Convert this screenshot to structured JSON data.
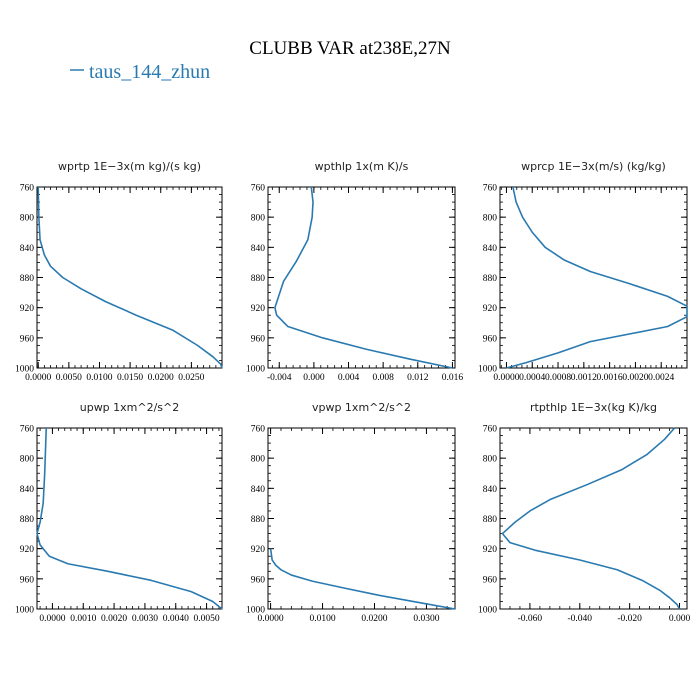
{
  "title": "CLUBB VAR at238E,27N",
  "legend": {
    "label": "taus_144_zhun",
    "color": "#2a7ab0"
  },
  "chart_data": [
    {
      "type": "line",
      "title": "wprtp   1E−3x(m kg)/(s kg)",
      "xlim": [
        -0.0002,
        0.03
      ],
      "ylim": [
        760,
        1000
      ],
      "xticks": [
        0.0,
        0.005,
        0.01,
        0.015,
        0.02,
        0.025
      ],
      "xticklabels": [
        "0.0000",
        "0.0050",
        "0.0100",
        "0.0150",
        "0.0200",
        "0.0250"
      ],
      "yticks": [
        760,
        800,
        840,
        880,
        920,
        960,
        1000
      ],
      "yticklabels": [
        "760",
        "800",
        "840",
        "880",
        "920",
        "960",
        "1000"
      ],
      "series": [
        {
          "x": [
            0.0,
            0.0001,
            0.0003,
            0.001,
            0.002,
            0.004,
            0.007,
            0.011,
            0.016,
            0.022,
            0.026,
            0.0285,
            0.0298,
            0.03
          ],
          "y": [
            760,
            800,
            830,
            850,
            865,
            880,
            895,
            912,
            930,
            950,
            970,
            985,
            995,
            1000
          ]
        }
      ]
    },
    {
      "type": "line",
      "title": "wpthlp   1x(m K)/s",
      "xlim": [
        -0.0053,
        0.0163
      ],
      "ylim": [
        760,
        1000
      ],
      "xticks": [
        -0.004,
        0.0,
        0.004,
        0.008,
        0.012,
        0.016
      ],
      "xticklabels": [
        "-0.004",
        "0.000",
        "0.004",
        "0.008",
        "0.012",
        "0.016"
      ],
      "yticks": [
        760,
        800,
        840,
        880,
        920,
        960,
        1000
      ],
      "yticklabels": [
        "760",
        "800",
        "840",
        "880",
        "920",
        "960",
        "1000"
      ],
      "series": [
        {
          "x": [
            -0.0003,
            -0.0001,
            -0.0002,
            -0.0007,
            -0.002,
            -0.0035,
            -0.0045,
            -0.0043,
            -0.003,
            0.001,
            0.006,
            0.011,
            0.016
          ],
          "y": [
            760,
            780,
            800,
            830,
            858,
            885,
            920,
            930,
            945,
            960,
            975,
            988,
            1000
          ]
        }
      ]
    },
    {
      "type": "line",
      "title": "wprcp   1E−3x(m/s) (kg/kg)",
      "xlim": [
        -0.0001,
        0.0028
      ],
      "ylim": [
        760,
        1000
      ],
      "xticks": [
        0.0,
        0.0004,
        0.0008,
        0.0012,
        0.0016,
        0.002,
        0.0024
      ],
      "xticklabels": [
        "0.0000",
        "0.0004",
        "0.0008",
        "0.0012",
        "0.0016",
        "0.0020",
        "0.0024"
      ],
      "yticks": [
        760,
        800,
        840,
        880,
        920,
        960,
        1000
      ],
      "yticklabels": [
        "760",
        "800",
        "840",
        "880",
        "920",
        "960",
        "1000"
      ],
      "series": [
        {
          "x": [
            0.0001,
            0.00015,
            0.00025,
            0.0004,
            0.0006,
            0.0009,
            0.0013,
            0.0019,
            0.0025,
            0.0028,
            0.0028,
            0.0025,
            0.0013,
            0.0008,
            0.0003,
            0.0
          ],
          "y": [
            760,
            780,
            800,
            820,
            840,
            857,
            872,
            888,
            905,
            918,
            932,
            945,
            965,
            980,
            993,
            1000
          ]
        }
      ]
    },
    {
      "type": "line",
      "title": "upwp   1xm^2/s^2",
      "xlim": [
        -0.0005,
        0.0055
      ],
      "ylim": [
        760,
        1000
      ],
      "xticks": [
        0.0,
        0.001,
        0.002,
        0.003,
        0.004,
        0.005
      ],
      "xticklabels": [
        "0.0000",
        "0.0010",
        "0.0020",
        "0.0030",
        "0.0040",
        "0.0050"
      ],
      "yticks": [
        760,
        800,
        840,
        880,
        920,
        960,
        1000
      ],
      "yticklabels": [
        "760",
        "800",
        "840",
        "880",
        "920",
        "960",
        "1000"
      ],
      "series": [
        {
          "x": [
            -0.0002,
            -0.00025,
            -0.0003,
            -0.0004,
            -0.0005,
            -0.0004,
            -0.0001,
            0.0005,
            0.0018,
            0.0032,
            0.0045,
            0.0052,
            0.0055
          ],
          "y": [
            760,
            820,
            860,
            885,
            900,
            915,
            930,
            940,
            950,
            962,
            977,
            990,
            1000
          ]
        }
      ]
    },
    {
      "type": "line",
      "title": "vpwp   1xm^2/s^2",
      "xlim": [
        -0.0005,
        0.0355
      ],
      "ylim": [
        760,
        1000
      ],
      "xticks": [
        0.0,
        0.01,
        0.02,
        0.03
      ],
      "xticklabels": [
        "0.0000",
        "0.0100",
        "0.0200",
        "0.0300"
      ],
      "yticks": [
        760,
        800,
        840,
        880,
        920,
        960,
        1000
      ],
      "yticklabels": [
        "760",
        "800",
        "840",
        "880",
        "920",
        "960",
        "1000"
      ],
      "series": [
        {
          "x": [
            0.0,
            0.0003,
            0.001,
            0.002,
            0.004,
            0.008,
            0.014,
            0.021,
            0.029,
            0.0355
          ],
          "y": [
            920,
            935,
            942,
            948,
            955,
            963,
            972,
            982,
            992,
            1000
          ]
        }
      ]
    },
    {
      "type": "line",
      "title": "rtpthlp   1E−3x(kg K)/kg",
      "xlim": [
        -0.072,
        0.003
      ],
      "ylim": [
        760,
        1000
      ],
      "xticks": [
        -0.06,
        -0.04,
        -0.02,
        0.0
      ],
      "xticklabels": [
        "-0.060",
        "-0.040",
        "-0.020",
        "0.000"
      ],
      "yticks": [
        760,
        800,
        840,
        880,
        920,
        960,
        1000
      ],
      "yticklabels": [
        "760",
        "800",
        "840",
        "880",
        "920",
        "960",
        "1000"
      ],
      "series": [
        {
          "x": [
            -0.002,
            -0.006,
            -0.013,
            -0.023,
            -0.037,
            -0.052,
            -0.06,
            -0.066,
            -0.071,
            -0.068,
            -0.058,
            -0.04,
            -0.025,
            -0.015,
            -0.008,
            -0.004,
            -0.001,
            0.0
          ],
          "y": [
            760,
            775,
            795,
            815,
            835,
            855,
            870,
            885,
            900,
            912,
            922,
            935,
            948,
            962,
            975,
            985,
            994,
            1000
          ]
        }
      ]
    }
  ]
}
